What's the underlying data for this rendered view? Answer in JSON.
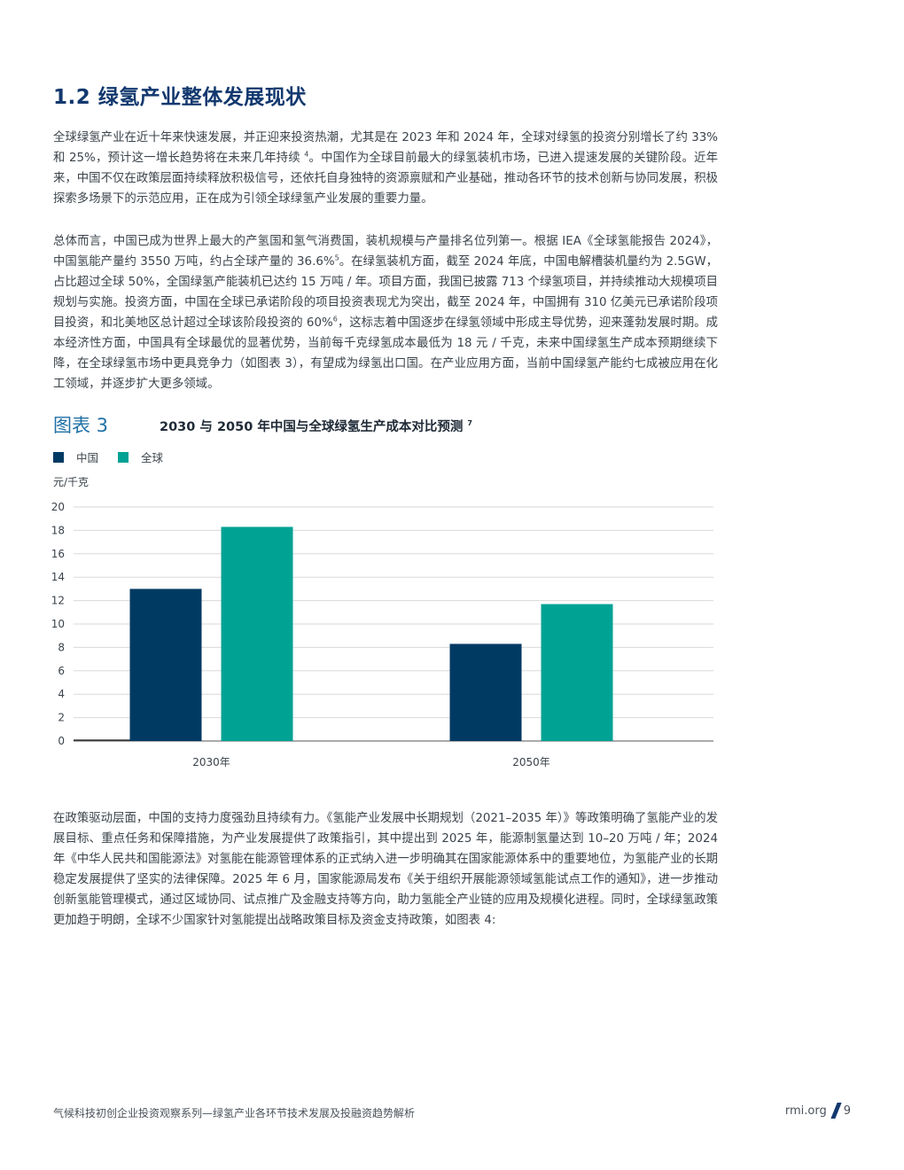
{
  "section": {
    "heading": "1.2 绿氢产业整体发展现状"
  },
  "paragraphs": {
    "p1_a": "全球绿氢产业在近十年来快速发展，并正迎来投资热潮，尤其是在 2023 年和 2024 年，全球对绿氢的投资分别增长了约 33% 和 25%，预计这一增长趋势将在未来几年持续 ",
    "p1_ref": "4",
    "p1_b": "。中国作为全球目前最大的绿氢装机市场，已进入提速发展的关键阶段。近年来，中国不仅在政策层面持续释放积极信号，还依托自身独特的资源禀赋和产业基础，推动各环节的技术创新与协同发展，积极探索多场景下的示范应用，正在成为引领全球绿氢产业发展的重要力量。",
    "p2_a": "总体而言，中国已成为世界上最大的产氢国和氢气消费国，装机规模与产量排名位列第一。根据 IEA《全球氢能报告 2024》，中国氢能产量约 3550 万吨，约占全球产量的 36.6%",
    "p2_ref1": "5",
    "p2_b": "。在绿氢装机方面，截至 2024 年底，中国电解槽装机量约为 2.5GW，占比超过全球 50%，全国绿氢产能装机已达约 15 万吨 / 年。项目方面，我国已披露 713 个绿氢项目，并持续推动大规模项目规划与实施。投资方面，中国在全球已承诺阶段的项目投资表现尤为突出，截至 2024 年，中国拥有 310 亿美元已承诺阶段项目投资，和北美地区总计超过全球该阶段投资的 60%",
    "p2_ref2": "6",
    "p2_c": "，这标志着中国逐步在绿氢领域中形成主导优势，迎来蓬勃发展时期。成本经济性方面，中国具有全球最优的显著优势，当前每千克绿氢成本最低为 18 元 / 千克，未来中国绿氢生产成本预期继续下降，在全球绿氢市场中更具竞争力（如图表 3），有望成为绿氢出口国。在产业应用方面，当前中国绿氢产能约七成被应用在化工领域，并逐步扩大更多领域。",
    "p3": "在政策驱动层面，中国的支持力度强劲且持续有力。《氢能产业发展中长期规划（2021–2035 年）》等政策明确了氢能产业的发展目标、重点任务和保障措施，为产业发展提供了政策指引，其中提出到 2025 年，能源制氢量达到 10–20 万吨 / 年；2024 年《中华人民共和国能源法》对氢能在能源管理体系的正式纳入进一步明确其在国家能源体系中的重要地位，为氢能产业的长期稳定发展提供了坚实的法律保障。2025 年 6 月，国家能源局发布《关于组织开展能源领域氢能试点工作的通知》，进一步推动创新氢能管理模式，通过区域协同、试点推广及金融支持等方向，助力氢能全产业链的应用及规模化进程。同时，全球绿氢政策更加趋于明朗，全球不少国家针对氢能提出战略政策目标及资金支持政策，如图表 4:"
  },
  "figure": {
    "label": "图表 3",
    "title": "2030 与 2050 年中国与全球绿氢生产成本对比预测 ",
    "title_ref": "7"
  },
  "chart_data": {
    "type": "bar",
    "categories": [
      "2030年",
      "2050年"
    ],
    "series": [
      {
        "name": "中国",
        "color": "#003A63",
        "values": [
          13.0,
          8.3
        ]
      },
      {
        "name": "全球",
        "color": "#00A294",
        "values": [
          18.3,
          11.7
        ]
      }
    ],
    "ylabel": "元/千克",
    "ylim": [
      0,
      20
    ],
    "yticks": [
      0,
      2,
      4,
      6,
      8,
      10,
      12,
      14,
      16,
      18,
      20
    ],
    "grid": true,
    "legend": "top-left"
  },
  "footer": {
    "series_title": "气候科技初创企业投资观察系列—绿氢产业各环节技术发展及投融资趋势解析",
    "site": "rmi.org",
    "page_number": "9"
  }
}
